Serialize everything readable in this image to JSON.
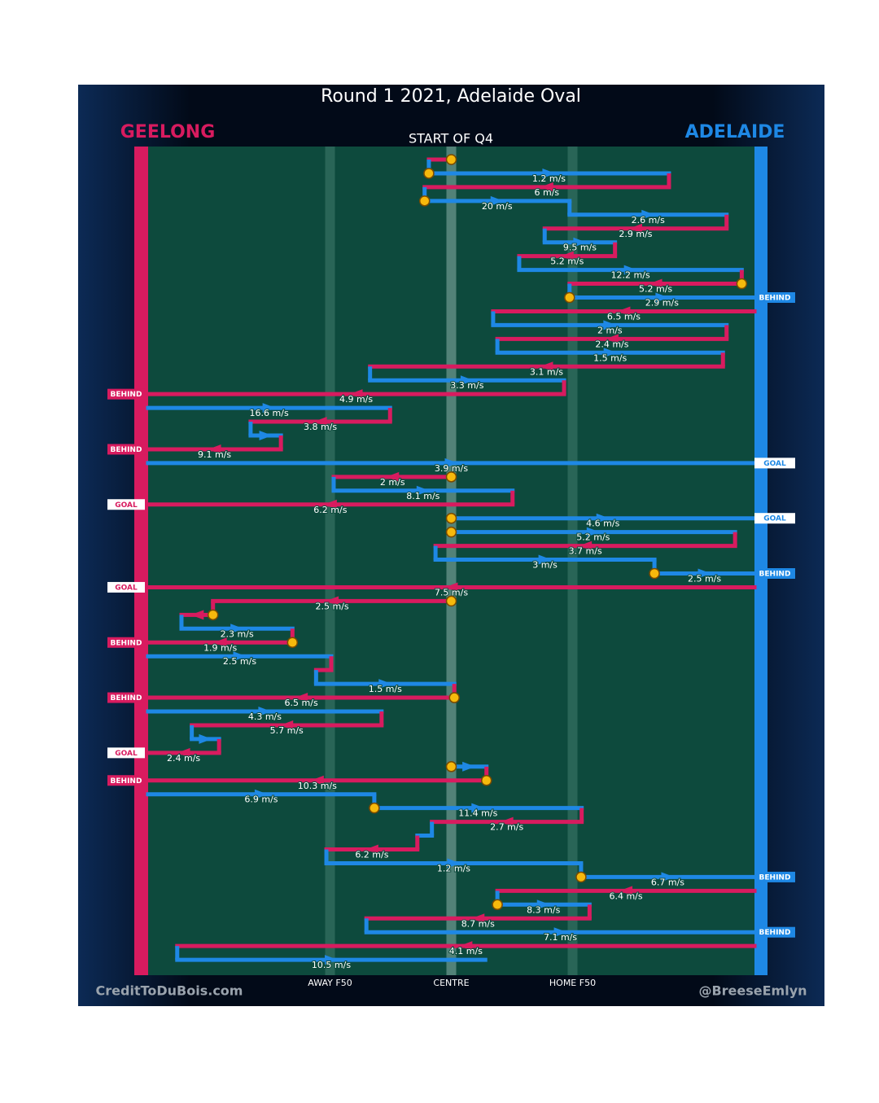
{
  "chart_data": {
    "type": "chain",
    "title": "Round 1 2021, Adelaide Oval",
    "subtitle": "START OF Q4",
    "teams": [
      {
        "name": "GEELONG",
        "color": "#d81b5f"
      },
      {
        "name": "ADELAIDE",
        "color": "#1e88e5"
      }
    ],
    "xlim": [
      0,
      100
    ],
    "xticks": [
      {
        "value": 30,
        "label": "AWAY F50"
      },
      {
        "value": 50,
        "label": "CENTRE"
      },
      {
        "value": 70,
        "label": "HOME F50"
      }
    ],
    "footer_left": "CreditToDuBois.com",
    "footer_right": "@BreeseEmlyn",
    "segments": [
      {
        "team": "GEELONG",
        "from": 50,
        "to": 46.3,
        "speed": null,
        "bounce": true
      },
      {
        "team": "ADELAIDE",
        "from": 46.3,
        "to": 85.9,
        "speed": 1.2,
        "speed_label": "1.2 m/s",
        "bounce": true
      },
      {
        "team": "GEELONG",
        "from": 85.9,
        "to": 45.6,
        "speed": 6,
        "speed_label": "6 m/s"
      },
      {
        "team": "ADELAIDE",
        "from": 45.6,
        "to": 69.5,
        "speed": 20,
        "speed_label": "20 m/s",
        "bounce": true
      },
      {
        "team": "ADELAIDE",
        "from": 69.5,
        "to": 95.4,
        "speed": 2.6,
        "speed_label": "2.6 m/s"
      },
      {
        "team": "GEELONG",
        "from": 95.4,
        "to": 65.4,
        "speed": 2.9,
        "speed_label": "2.9 m/s"
      },
      {
        "team": "ADELAIDE",
        "from": 65.4,
        "to": 77.0,
        "speed": 9.5,
        "speed_label": "9.5 m/s"
      },
      {
        "team": "GEELONG",
        "from": 77.0,
        "to": 61.2,
        "speed": 5.2,
        "speed_label": "5.2 m/s"
      },
      {
        "team": "ADELAIDE",
        "from": 61.2,
        "to": 97.9,
        "speed": 12.2,
        "speed_label": "12.2 m/s"
      },
      {
        "team": "GEELONG",
        "from": 97.9,
        "to": 69.5,
        "speed": 5.2,
        "speed_label": "5.2 m/s",
        "bounce": true
      },
      {
        "team": "ADELAIDE",
        "from": 69.5,
        "to": 100,
        "speed": 2.9,
        "speed_label": "2.9 m/s",
        "bounce": true,
        "outcome": "BEHIND"
      },
      {
        "team": "GEELONG",
        "from": 100,
        "to": 56.9,
        "speed": 6.5,
        "speed_label": "6.5 m/s"
      },
      {
        "team": "ADELAIDE",
        "from": 56.9,
        "to": 95.4,
        "speed": 2,
        "speed_label": "2 m/s"
      },
      {
        "team": "GEELONG",
        "from": 95.4,
        "to": 57.6,
        "speed": 2.4,
        "speed_label": "2.4 m/s"
      },
      {
        "team": "ADELAIDE",
        "from": 57.6,
        "to": 94.8,
        "speed": 1.5,
        "speed_label": "1.5 m/s"
      },
      {
        "team": "GEELONG",
        "from": 94.8,
        "to": 36.6,
        "speed": 3.1,
        "speed_label": "3.1 m/s"
      },
      {
        "team": "ADELAIDE",
        "from": 36.6,
        "to": 68.6,
        "speed": 3.3,
        "speed_label": "3.3 m/s"
      },
      {
        "team": "GEELONG",
        "from": 68.6,
        "to": 0,
        "speed": 4.9,
        "speed_label": "4.9 m/s",
        "outcome": "BEHIND"
      },
      {
        "team": "ADELAIDE",
        "from": 0,
        "to": 39.9,
        "speed": 16.6,
        "speed_label": "16.6 m/s"
      },
      {
        "team": "GEELONG",
        "from": 39.9,
        "to": 16.9,
        "speed": 3.8,
        "speed_label": "3.8 m/s"
      },
      {
        "team": "ADELAIDE",
        "from": 16.9,
        "to": 21.9,
        "speed": null
      },
      {
        "team": "GEELONG",
        "from": 21.9,
        "to": 0,
        "speed": 9.1,
        "speed_label": "9.1 m/s",
        "outcome": "BEHIND"
      },
      {
        "team": "ADELAIDE",
        "from": 0,
        "to": 100,
        "speed": 3.9,
        "speed_label": "3.9 m/s",
        "outcome": "GOAL"
      },
      {
        "team": "GEELONG",
        "from": 50,
        "to": 30.6,
        "speed": 2,
        "speed_label": "2 m/s",
        "bounce": true
      },
      {
        "team": "ADELAIDE",
        "from": 30.6,
        "to": 60.1,
        "speed": 8.1,
        "speed_label": "8.1 m/s"
      },
      {
        "team": "GEELONG",
        "from": 60.1,
        "to": 0,
        "speed": 6.2,
        "speed_label": "6.2 m/s",
        "outcome": "GOAL"
      },
      {
        "team": "ADELAIDE",
        "from": 50,
        "to": 100,
        "speed": 4.6,
        "speed_label": "4.6 m/s",
        "bounce": true,
        "outcome": "GOAL"
      },
      {
        "team": "ADELAIDE",
        "from": 50,
        "to": 96.8,
        "speed": 5.2,
        "speed_label": "5.2 m/s",
        "bounce": true
      },
      {
        "team": "GEELONG",
        "from": 96.8,
        "to": 47.4,
        "speed": 3.7,
        "speed_label": "3.7 m/s"
      },
      {
        "team": "ADELAIDE",
        "from": 47.4,
        "to": 83.5,
        "speed": 3,
        "speed_label": "3 m/s"
      },
      {
        "team": "ADELAIDE",
        "from": 83.5,
        "to": 100,
        "speed": 2.5,
        "speed_label": "2.5 m/s",
        "bounce": true,
        "outcome": "BEHIND"
      },
      {
        "team": "GEELONG",
        "from": 100,
        "to": 0,
        "speed": 7.5,
        "speed_label": "7.5 m/s",
        "outcome": "GOAL"
      },
      {
        "team": "GEELONG",
        "from": 50,
        "to": 10.7,
        "speed": 2.5,
        "speed_label": "2.5 m/s",
        "bounce": true
      },
      {
        "team": "GEELONG",
        "from": 10.7,
        "to": 5.5,
        "speed": null,
        "bounce": true
      },
      {
        "team": "ADELAIDE",
        "from": 5.5,
        "to": 23.8,
        "speed": 2.3,
        "speed_label": "2.3 m/s"
      },
      {
        "team": "GEELONG",
        "from": 23.8,
        "to": 0,
        "speed": 1.9,
        "speed_label": "1.9 m/s",
        "bounce": true,
        "outcome": "BEHIND"
      },
      {
        "team": "ADELAIDE",
        "from": 0,
        "to": 30.2,
        "speed": 2.5,
        "speed_label": "2.5 m/s"
      },
      {
        "team": "GEELONG",
        "from": 30.2,
        "to": 27.7,
        "speed": null
      },
      {
        "team": "ADELAIDE",
        "from": 27.7,
        "to": 50.5,
        "speed": 1.5,
        "speed_label": "1.5 m/s"
      },
      {
        "team": "GEELONG",
        "from": 50.5,
        "to": 0,
        "speed": 6.5,
        "speed_label": "6.5 m/s",
        "bounce": true,
        "outcome": "BEHIND"
      },
      {
        "team": "ADELAIDE",
        "from": 0,
        "to": 38.5,
        "speed": 4.3,
        "speed_label": "4.3 m/s"
      },
      {
        "team": "GEELONG",
        "from": 38.5,
        "to": 7.2,
        "speed": 5.7,
        "speed_label": "5.7 m/s"
      },
      {
        "team": "ADELAIDE",
        "from": 7.2,
        "to": 11.7,
        "speed": null
      },
      {
        "team": "GEELONG",
        "from": 11.7,
        "to": 0,
        "speed": 2.4,
        "speed_label": "2.4 m/s",
        "outcome": "GOAL"
      },
      {
        "team": "ADELAIDE",
        "from": 50,
        "to": 55.8,
        "speed": null,
        "bounce": true
      },
      {
        "team": "GEELONG",
        "from": 55.8,
        "to": 0,
        "speed": 10.3,
        "speed_label": "10.3 m/s",
        "bounce": true,
        "outcome": "BEHIND"
      },
      {
        "team": "ADELAIDE",
        "from": 0,
        "to": 37.3,
        "speed": 6.9,
        "speed_label": "6.9 m/s"
      },
      {
        "team": "ADELAIDE",
        "from": 37.3,
        "to": 71.5,
        "speed": 11.4,
        "speed_label": "11.4 m/s",
        "bounce": true
      },
      {
        "team": "GEELONG",
        "from": 71.5,
        "to": 46.8,
        "speed": 2.7,
        "speed_label": "2.7 m/s"
      },
      {
        "team": "ADELAIDE",
        "from": 46.8,
        "to": 44.4,
        "speed": null
      },
      {
        "team": "GEELONG",
        "from": 44.4,
        "to": 29.4,
        "speed": 6.2,
        "speed_label": "6.2 m/s"
      },
      {
        "team": "ADELAIDE",
        "from": 29.4,
        "to": 71.4,
        "speed": 1.2,
        "speed_label": "1.2 m/s"
      },
      {
        "team": "ADELAIDE",
        "from": 71.4,
        "to": 100,
        "speed": 6.7,
        "speed_label": "6.7 m/s",
        "bounce": true,
        "outcome": "BEHIND"
      },
      {
        "team": "GEELONG",
        "from": 100,
        "to": 57.6,
        "speed": 6.4,
        "speed_label": "6.4 m/s"
      },
      {
        "team": "ADELAIDE",
        "from": 57.6,
        "to": 72.8,
        "speed": 8.3,
        "speed_label": "8.3 m/s",
        "bounce": true
      },
      {
        "team": "GEELONG",
        "from": 72.8,
        "to": 36.0,
        "speed": 8.7,
        "speed_label": "8.7 m/s"
      },
      {
        "team": "ADELAIDE",
        "from": 36.0,
        "to": 100,
        "speed": 7.1,
        "speed_label": "7.1 m/s",
        "outcome": "BEHIND"
      },
      {
        "team": "GEELONG",
        "from": 100,
        "to": 4.8,
        "speed": 4.1,
        "speed_label": "4.1 m/s"
      },
      {
        "team": "ADELAIDE",
        "from": 4.8,
        "to": 55.6,
        "speed": 10.5,
        "speed_label": "10.5 m/s"
      }
    ]
  }
}
